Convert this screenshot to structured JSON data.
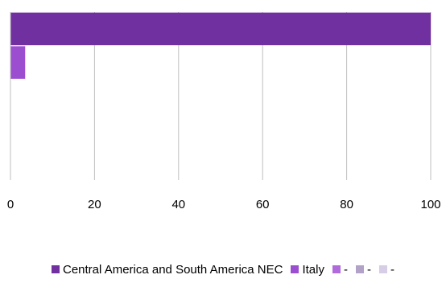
{
  "chart_data": {
    "type": "bar",
    "orientation": "horizontal",
    "categories": [
      "",
      "",
      "",
      "",
      ""
    ],
    "series": [
      {
        "name": "Central America and South America NEC",
        "values": [
          100,
          null,
          null,
          null,
          null
        ],
        "color": "#7030a0"
      },
      {
        "name": "Italy",
        "values": [
          null,
          3.5,
          null,
          null,
          null
        ],
        "color": "#9b4fd0"
      },
      {
        "name": "-",
        "values": [
          null,
          null,
          0,
          null,
          null
        ],
        "color": "#b06adb"
      },
      {
        "name": "-",
        "values": [
          null,
          null,
          null,
          0,
          null
        ],
        "color": "#b3a2c7"
      },
      {
        "name": "-",
        "values": [
          null,
          null,
          null,
          null,
          0
        ],
        "color": "#d7cde6"
      }
    ],
    "xlim": [
      0,
      100
    ],
    "x_ticks": [
      "0",
      "20",
      "40",
      "60",
      "80",
      "100"
    ],
    "grid": "vertical",
    "legend": "bottom",
    "title": "",
    "xlabel": "",
    "ylabel": ""
  }
}
